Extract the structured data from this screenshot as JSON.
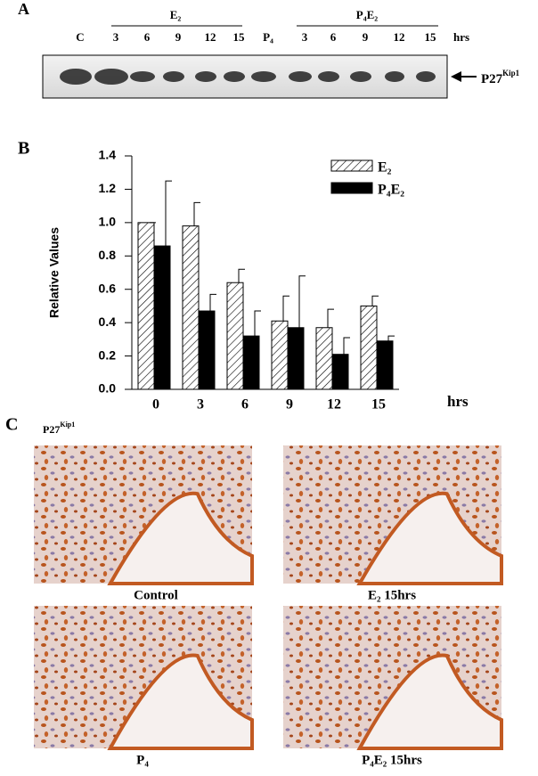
{
  "panel_a": {
    "label": "A",
    "lanes": [
      "C",
      "3",
      "6",
      "9",
      "12",
      "15",
      "P₄",
      "3",
      "6",
      "9",
      "12",
      "15"
    ],
    "groups": [
      "E₂",
      "P₄E₂"
    ],
    "unit": "hrs",
    "marker": {
      "text": "P27",
      "sup": "Kip1"
    }
  },
  "panel_b": {
    "label": "B"
  },
  "chart_data": {
    "type": "bar",
    "y_label": "Relative Values",
    "x_label": "hrs",
    "categories": [
      "0",
      "3",
      "6",
      "9",
      "12",
      "15"
    ],
    "series": [
      {
        "name": "E₂",
        "color": "#ffffff",
        "hatch": true,
        "values": [
          1.0,
          0.98,
          0.64,
          0.41,
          0.37,
          0.5
        ],
        "errors": [
          0,
          0.14,
          0.08,
          0.15,
          0.11,
          0.06
        ]
      },
      {
        "name": "P₄E₂",
        "color": "#000000",
        "hatch": false,
        "values": [
          0.86,
          0.47,
          0.32,
          0.37,
          0.21,
          0.29
        ],
        "errors": [
          0.39,
          0.1,
          0.15,
          0.31,
          0.1,
          0.03
        ]
      }
    ],
    "ylim": [
      0,
      1.4
    ],
    "yticks": [
      {
        "value": 0,
        "label": "0.0"
      },
      0.2,
      0.4,
      0.6,
      0.8,
      {
        "value": 1,
        "label": "1.0"
      },
      1.2,
      1.4
    ],
    "legend": "upper right"
  },
  "panel_c": {
    "label": "C",
    "stain": {
      "text": "P27",
      "sup": "Kip1"
    },
    "images": [
      "Control",
      "E₂ 15hrs",
      "P₄",
      "P₄E₂ 15hrs"
    ]
  }
}
